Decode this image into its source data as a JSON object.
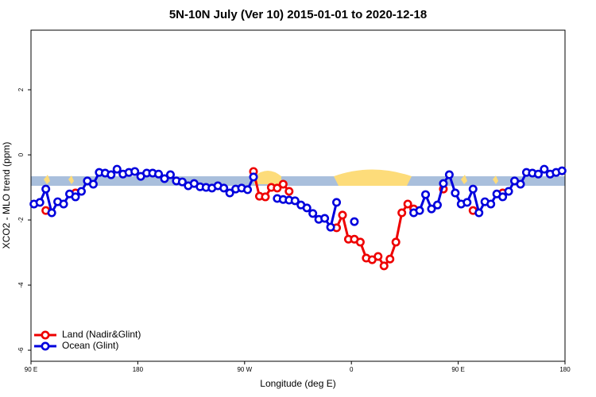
{
  "chart_data": {
    "type": "line",
    "title": "5N-10N July (Ver 10)   2015-01-01 to 2020-12-18",
    "x_label": "Longitude (deg E)",
    "y_label": "XCO2 - MLO trend (ppm)",
    "x": [
      92.5,
      97.5,
      102.5,
      107.5,
      112.5,
      117.5,
      122.5,
      127.5,
      132.5,
      137.5,
      142.5,
      147.5,
      152.5,
      157.5,
      162.5,
      167.5,
      172.5,
      177.5,
      182.5,
      187.5,
      192.5,
      197.5,
      202.5,
      207.5,
      212.5,
      217.5,
      222.5,
      227.5,
      232.5,
      237.5,
      242.5,
      247.5,
      252.5,
      257.5,
      262.5,
      267.5,
      272.5,
      277.5,
      282.5,
      287.5,
      292.5,
      297.5,
      302.5,
      307.5,
      312.5,
      317.5,
      322.5,
      327.5,
      332.5,
      337.5,
      342.5,
      347.5,
      352.5,
      357.5,
      362.5,
      367.5,
      372.5,
      377.5,
      382.5,
      387.5,
      392.5,
      397.5,
      402.5,
      407.5,
      412.5,
      417.5,
      422.5,
      427.5,
      432.5,
      437.5,
      442.5,
      447.5,
      452.5,
      457.5,
      462.5,
      467.5,
      472.5,
      477.5,
      482.5,
      487.5,
      492.5,
      497.5,
      502.5,
      507.5,
      512.5,
      517.5,
      522.5,
      527.5,
      532.5,
      537.5
    ],
    "series": [
      {
        "name": "Land (Nadir&Glint)",
        "color": "#ee0000",
        "values": [
          null,
          null,
          -1.71,
          null,
          null,
          null,
          null,
          -1.17,
          null,
          null,
          null,
          null,
          null,
          null,
          null,
          null,
          null,
          null,
          null,
          null,
          null,
          null,
          null,
          null,
          null,
          null,
          null,
          null,
          null,
          null,
          null,
          null,
          null,
          null,
          null,
          null,
          null,
          -0.51,
          -1.27,
          -1.29,
          -1.0,
          -1.02,
          -0.9,
          -1.12,
          null,
          null,
          null,
          null,
          null,
          null,
          null,
          -2.24,
          -1.85,
          -2.59,
          -2.59,
          -2.68,
          -3.17,
          -3.22,
          -3.12,
          -3.41,
          -3.2,
          -2.68,
          -1.78,
          -1.51,
          -1.66,
          null,
          null,
          null,
          null,
          -1.05,
          null,
          null,
          null,
          null,
          -1.71,
          null,
          null,
          null,
          null,
          -1.17,
          null,
          null,
          null,
          null,
          null,
          null,
          null,
          null,
          null,
          null
        ]
      },
      {
        "name": "Ocean (Glint)",
        "color": "#0000dd",
        "values": [
          -1.51,
          -1.46,
          -1.05,
          -1.78,
          -1.44,
          -1.51,
          -1.2,
          -1.29,
          -1.12,
          -0.8,
          -0.9,
          -0.54,
          -0.56,
          -0.61,
          -0.44,
          -0.59,
          -0.54,
          -0.51,
          -0.66,
          -0.56,
          -0.56,
          -0.59,
          -0.73,
          -0.61,
          -0.8,
          -0.83,
          -0.95,
          -0.88,
          -0.98,
          -1.0,
          -1.02,
          -0.95,
          -1.02,
          -1.17,
          -1.05,
          -1.02,
          -1.07,
          -0.68,
          null,
          null,
          null,
          -1.34,
          -1.37,
          -1.39,
          -1.41,
          -1.54,
          -1.63,
          -1.8,
          -1.98,
          -1.95,
          -2.22,
          -1.46,
          null,
          null,
          -2.05,
          null,
          null,
          null,
          null,
          null,
          null,
          null,
          null,
          null,
          -1.78,
          -1.71,
          -1.22,
          -1.66,
          -1.54,
          -0.88,
          -0.61,
          -1.17,
          -1.51,
          -1.46,
          -1.05,
          -1.78,
          -1.44,
          -1.51,
          -1.2,
          -1.29,
          -1.12,
          -0.8,
          -0.9,
          -0.54,
          -0.56,
          -0.59,
          -0.44,
          -0.59,
          -0.54,
          -0.49
        ]
      }
    ],
    "xlim": [
      90,
      540
    ],
    "xticks": [
      {
        "value": 90,
        "label": "90 E"
      },
      180,
      {
        "value": 270,
        "label": "90 W"
      },
      {
        "value": 360,
        "label": "0"
      },
      {
        "value": 450,
        "label": "90 E"
      },
      {
        "value": 540,
        "label": "180"
      }
    ],
    "ylim": [
      -6.34,
      3.83
    ],
    "yticks": [
      2,
      0,
      -2,
      -4,
      -6
    ],
    "legend": "bottom-left"
  }
}
